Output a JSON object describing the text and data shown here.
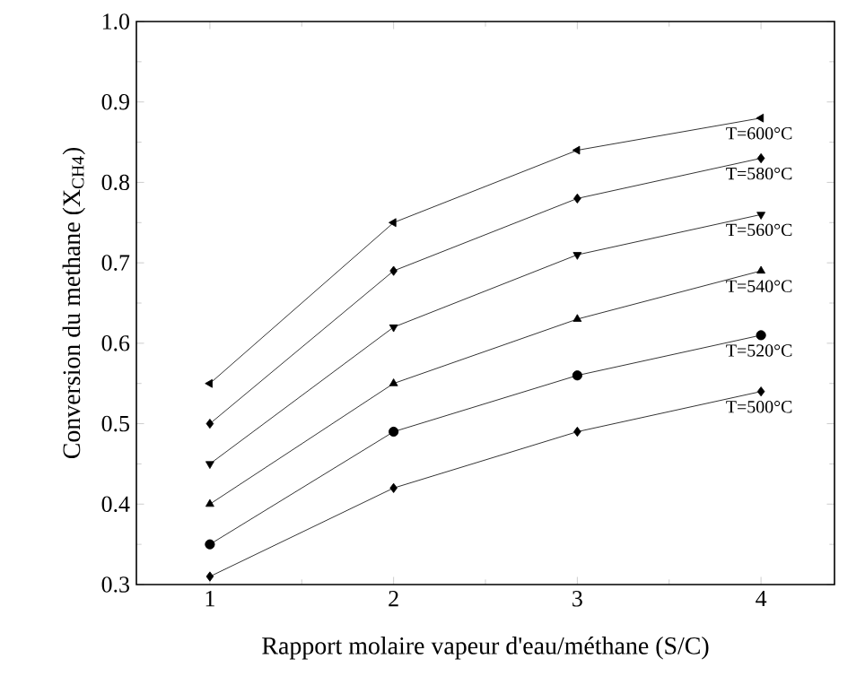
{
  "chart_data": {
    "type": "line",
    "xlabel": "Rapport molaire vapeur d'eau/méthane (S/C)",
    "ylabel": "Conversion  du methane  (X$_{CH4}$)",
    "x": [
      1,
      2,
      3,
      4
    ],
    "xlim": [
      0.6,
      4.4
    ],
    "xticks": [
      1,
      2,
      3,
      4
    ],
    "ylim": [
      0.3,
      1.0
    ],
    "yticks": [
      0.3,
      0.4,
      0.5,
      0.6,
      0.7,
      0.8,
      0.9,
      {
        "value": 1.0,
        "label": "1.0"
      }
    ],
    "grid": false,
    "line_style": "solid",
    "series": [
      {
        "name": "T=600°C",
        "color": "#000000",
        "marker": "triangle-left",
        "values": [
          0.55,
          0.75,
          0.84,
          0.88
        ]
      },
      {
        "name": "T=580°C",
        "color": "#000000",
        "marker": "diamond",
        "values": [
          0.5,
          0.69,
          0.78,
          0.83
        ]
      },
      {
        "name": "T=560°C",
        "color": "#000000",
        "marker": "triangle-down",
        "values": [
          0.45,
          0.62,
          0.71,
          0.76
        ]
      },
      {
        "name": "T=540°C",
        "color": "#000000",
        "marker": "triangle",
        "values": [
          0.4,
          0.55,
          0.63,
          0.69
        ]
      },
      {
        "name": "T=520°C",
        "color": "#000000",
        "marker": "circle",
        "values": [
          0.35,
          0.49,
          0.56,
          0.61
        ]
      },
      {
        "name": "T=500°C",
        "color": "#000000",
        "marker": "diamond",
        "values": [
          0.31,
          0.42,
          0.49,
          0.54
        ]
      }
    ]
  }
}
